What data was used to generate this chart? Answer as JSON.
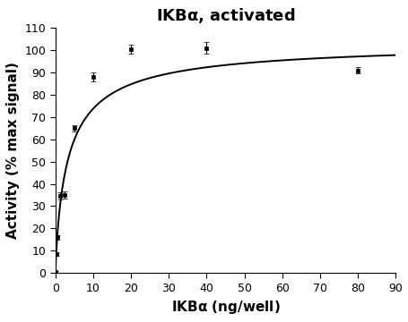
{
  "title": "IKBα, activated",
  "xlabel": "IKBα (ng/well)",
  "ylabel": "Activity (% max signal)",
  "xlim": [
    0,
    90
  ],
  "ylim": [
    0,
    110
  ],
  "xticks": [
    0,
    10,
    20,
    30,
    40,
    50,
    60,
    70,
    80,
    90
  ],
  "yticks": [
    0,
    10,
    20,
    30,
    40,
    50,
    60,
    70,
    80,
    90,
    100,
    110
  ],
  "data_x": [
    0.16,
    0.31,
    0.63,
    1.25,
    2.5,
    5.0,
    10.0,
    20.0,
    40.0,
    80.0
  ],
  "data_y": [
    0.5,
    8.5,
    16.0,
    34.5,
    35.0,
    65.0,
    88.0,
    100.5,
    101.0,
    91.0
  ],
  "data_yerr": [
    0.3,
    0.8,
    1.0,
    1.5,
    1.5,
    1.5,
    2.0,
    2.0,
    2.5,
    1.5
  ],
  "curve_Vmax": 104.0,
  "curve_Km": 3.5,
  "curve_n": 0.85,
  "point_color": "#000000",
  "line_color": "#000000",
  "bg_color": "#ffffff",
  "title_fontsize": 13,
  "label_fontsize": 11,
  "tick_fontsize": 9
}
